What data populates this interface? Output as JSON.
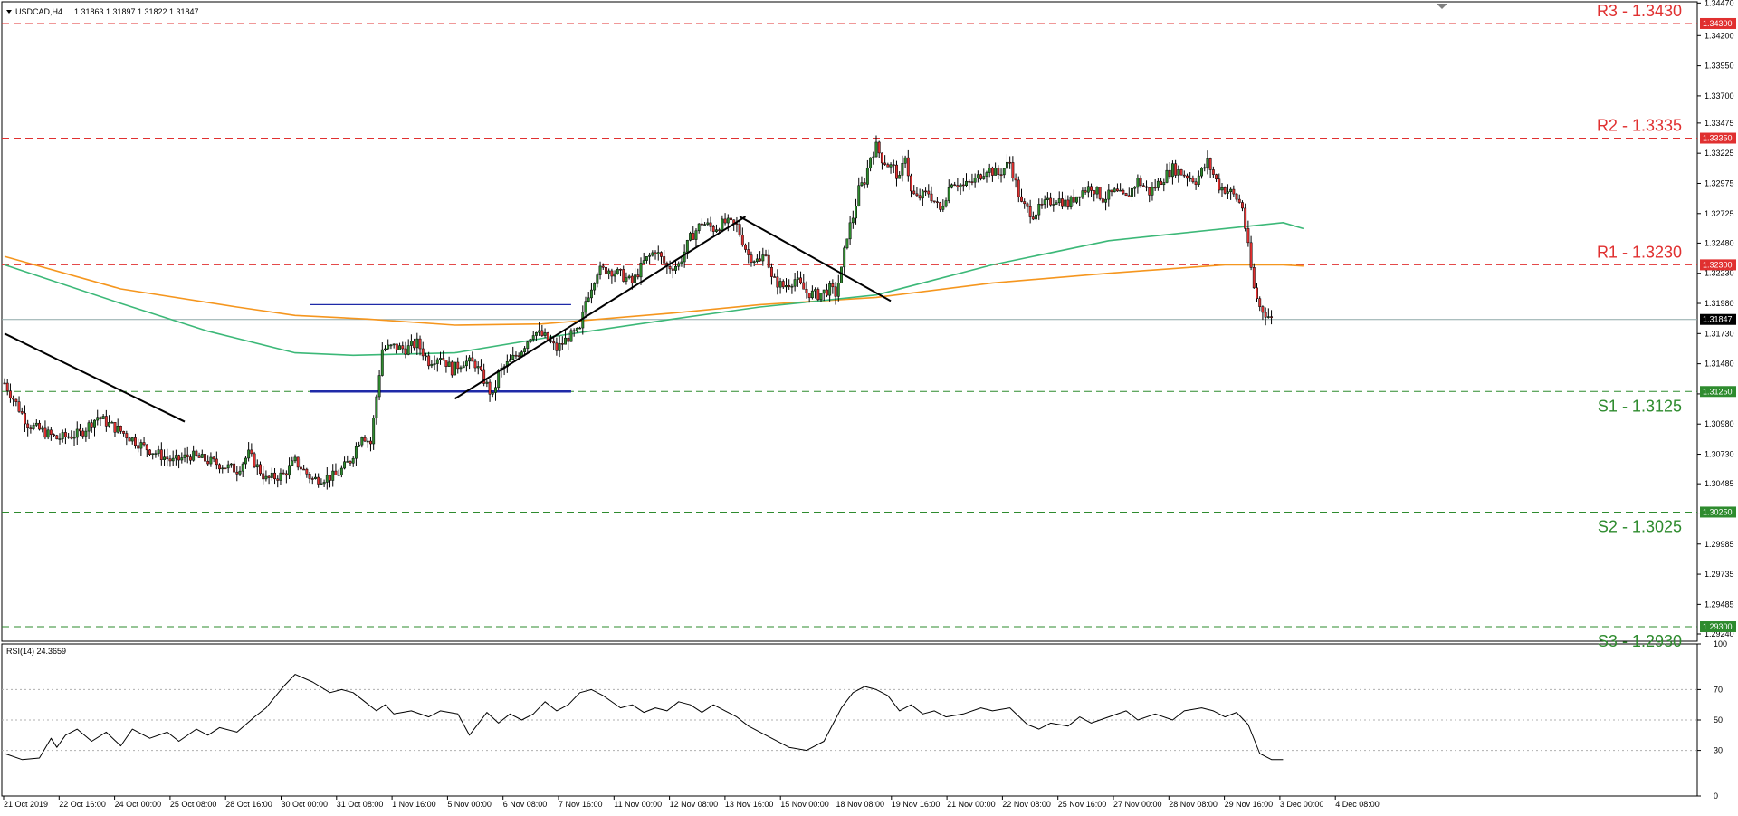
{
  "chart_data": [
    {
      "type": "candlestick",
      "header": {
        "symbol": "USDCAD,H4",
        "open": "1.31863",
        "high": "1.31897",
        "low": "1.31822",
        "close": "1.31847"
      },
      "last_price_label": "1.31847",
      "last_price": 1.31847,
      "ylim": [
        1.2918,
        1.3448
      ],
      "y_ticks": [
        "1.34470",
        "1.34200",
        "1.33950",
        "1.33700",
        "1.33475",
        "1.33225",
        "1.32975",
        "1.32725",
        "1.32480",
        "1.32230",
        "1.31980",
        "1.31730",
        "1.31480",
        "1.31230",
        "1.30980",
        "1.30730",
        "1.30485",
        "1.30235",
        "1.29985",
        "1.29735",
        "1.29485",
        "1.29240"
      ],
      "x_labels": [
        "21 Oct 2019",
        "22 Oct 16:00",
        "24 Oct 00:00",
        "25 Oct 08:00",
        "28 Oct 16:00",
        "30 Oct 00:00",
        "31 Oct 08:00",
        "1 Nov 16:00",
        "5 Nov 00:00",
        "6 Nov 08:00",
        "7 Nov 16:00",
        "11 Nov 00:00",
        "12 Nov 08:00",
        "13 Nov 16:00",
        "15 Nov 00:00",
        "18 Nov 08:00",
        "19 Nov 16:00",
        "21 Nov 00:00",
        "22 Nov 08:00",
        "25 Nov 16:00",
        "27 Nov 00:00",
        "28 Nov 08:00",
        "29 Nov 16:00",
        "3 Dec 00:00",
        "4 Dec 08:00"
      ],
      "levels": [
        {
          "name": "R3 - 1.3430",
          "label": "1.34300",
          "value": 1.343,
          "kind": "resistance"
        },
        {
          "name": "R2 - 1.3335",
          "label": "1.33350",
          "value": 1.3335,
          "kind": "resistance"
        },
        {
          "name": "R1 - 1.3230",
          "label": "1.32300",
          "value": 1.323,
          "kind": "resistance"
        },
        {
          "name": "S1 - 1.3125",
          "label": "1.31250",
          "value": 1.3125,
          "kind": "support"
        },
        {
          "name": "S2 - 1.3025",
          "label": "1.30250",
          "value": 1.3025,
          "kind": "support"
        },
        {
          "name": "S3 - 1.2930",
          "label": "1.29300",
          "value": 1.293,
          "kind": "support"
        }
      ],
      "close_path": [
        [
          0,
          1.3132
        ],
        [
          8,
          1.3098
        ],
        [
          18,
          1.3086
        ],
        [
          26,
          1.309
        ],
        [
          32,
          1.3104
        ],
        [
          40,
          1.3092
        ],
        [
          48,
          1.3079
        ],
        [
          58,
          1.3067
        ],
        [
          64,
          1.3072
        ],
        [
          72,
          1.3066
        ],
        [
          80,
          1.306
        ],
        [
          84,
          1.3073
        ],
        [
          90,
          1.3052
        ],
        [
          96,
          1.3056
        ],
        [
          100,
          1.3067
        ],
        [
          106,
          1.3052
        ],
        [
          114,
          1.3055
        ],
        [
          119,
          1.3068
        ],
        [
          123,
          1.309
        ],
        [
          126,
          1.3082
        ],
        [
          130,
          1.316
        ],
        [
          134,
          1.3162
        ],
        [
          138,
          1.316
        ],
        [
          142,
          1.3165
        ],
        [
          146,
          1.315
        ],
        [
          150,
          1.3155
        ],
        [
          154,
          1.3143
        ],
        [
          158,
          1.315
        ],
        [
          162,
          1.3148
        ],
        [
          166,
          1.313
        ],
        [
          168,
          1.312
        ],
        [
          170,
          1.314
        ],
        [
          174,
          1.315
        ],
        [
          178,
          1.316
        ],
        [
          182,
          1.3175
        ],
        [
          186,
          1.317
        ],
        [
          190,
          1.316
        ],
        [
          194,
          1.317
        ],
        [
          198,
          1.3175
        ],
        [
          200,
          1.32
        ],
        [
          204,
          1.3225
        ],
        [
          208,
          1.3226
        ],
        [
          212,
          1.3222
        ],
        [
          216,
          1.3215
        ],
        [
          220,
          1.3232
        ],
        [
          224,
          1.3242
        ],
        [
          228,
          1.3228
        ],
        [
          232,
          1.323
        ],
        [
          236,
          1.3252
        ],
        [
          240,
          1.3265
        ],
        [
          244,
          1.326
        ],
        [
          248,
          1.3265
        ],
        [
          252,
          1.3262
        ],
        [
          256,
          1.3238
        ],
        [
          260,
          1.3232
        ],
        [
          262,
          1.3242
        ],
        [
          264,
          1.3218
        ],
        [
          268,
          1.3212
        ],
        [
          272,
          1.3218
        ],
        [
          276,
          1.3207
        ],
        [
          280,
          1.3205
        ],
        [
          284,
          1.321
        ],
        [
          286,
          1.3206
        ],
        [
          288,
          1.3225
        ],
        [
          290,
          1.3255
        ],
        [
          292,
          1.327
        ],
        [
          294,
          1.3292
        ],
        [
          296,
          1.33
        ],
        [
          298,
          1.332
        ],
        [
          300,
          1.3328
        ],
        [
          302,
          1.3318
        ],
        [
          304,
          1.3313
        ],
        [
          306,
          1.331
        ],
        [
          308,
          1.33
        ],
        [
          310,
          1.3322
        ],
        [
          312,
          1.329
        ],
        [
          314,
          1.3285
        ],
        [
          318,
          1.329
        ],
        [
          322,
          1.3275
        ],
        [
          326,
          1.33
        ],
        [
          330,
          1.3295
        ],
        [
          334,
          1.33
        ],
        [
          338,
          1.331
        ],
        [
          342,
          1.3305
        ],
        [
          346,
          1.3315
        ],
        [
          350,
          1.328
        ],
        [
          354,
          1.3272
        ],
        [
          358,
          1.328
        ],
        [
          362,
          1.3285
        ],
        [
          366,
          1.328
        ],
        [
          370,
          1.329
        ],
        [
          374,
          1.3295
        ],
        [
          378,
          1.3285
        ],
        [
          382,
          1.329
        ],
        [
          386,
          1.3285
        ],
        [
          390,
          1.33
        ],
        [
          394,
          1.329
        ],
        [
          398,
          1.33
        ],
        [
          402,
          1.331
        ],
        [
          406,
          1.3305
        ],
        [
          410,
          1.33
        ],
        [
          414,
          1.3315
        ],
        [
          418,
          1.3295
        ],
        [
          422,
          1.329
        ],
        [
          424,
          1.3285
        ],
        [
          426,
          1.3278
        ],
        [
          430,
          1.321
        ],
        [
          432,
          1.3195
        ],
        [
          434,
          1.319
        ],
        [
          436,
          1.3185
        ]
      ],
      "trend_lines": [
        [
          [
            0,
            1.3173
          ],
          [
            62,
            1.31
          ]
        ],
        [
          [
            155,
            1.3119
          ],
          [
            255,
            1.327
          ]
        ],
        [
          [
            253,
            1.327
          ],
          [
            305,
            1.32
          ]
        ]
      ],
      "range_box": [
        [
          105,
          1.3197
        ],
        [
          195,
          1.3125
        ]
      ],
      "ma_orange": [
        [
          0,
          1.3237
        ],
        [
          40,
          1.321
        ],
        [
          80,
          1.3195
        ],
        [
          100,
          1.3188
        ],
        [
          125,
          1.3185
        ],
        [
          155,
          1.318
        ],
        [
          185,
          1.3181
        ],
        [
          230,
          1.319
        ],
        [
          260,
          1.3197
        ],
        [
          300,
          1.3203
        ],
        [
          340,
          1.3215
        ],
        [
          380,
          1.3223
        ],
        [
          420,
          1.323
        ],
        [
          440,
          1.323
        ],
        [
          447,
          1.3229
        ]
      ],
      "ma_green": [
        [
          0,
          1.323
        ],
        [
          40,
          1.3198
        ],
        [
          70,
          1.3175
        ],
        [
          100,
          1.3157
        ],
        [
          120,
          1.3155
        ],
        [
          155,
          1.3157
        ],
        [
          190,
          1.3171
        ],
        [
          230,
          1.3185
        ],
        [
          260,
          1.3195
        ],
        [
          300,
          1.3205
        ],
        [
          340,
          1.323
        ],
        [
          380,
          1.325
        ],
        [
          420,
          1.326
        ],
        [
          440,
          1.3265
        ],
        [
          447,
          1.326
        ]
      ]
    },
    {
      "type": "line",
      "title": "RSI(14) 24.3659",
      "ylim": [
        0,
        100
      ],
      "y_ticks": [
        "100",
        "70",
        "50",
        "30",
        "0"
      ],
      "x": [
        0,
        6,
        12,
        16,
        18,
        21,
        25,
        30,
        35,
        40,
        44,
        50,
        56,
        60,
        66,
        70,
        74,
        80,
        86,
        90,
        96,
        100,
        106,
        112,
        116,
        120,
        124,
        128,
        131,
        134,
        140,
        146,
        150,
        156,
        160,
        166,
        170,
        174,
        178,
        182,
        186,
        190,
        194,
        198,
        202,
        206,
        212,
        216,
        220,
        224,
        228,
        232,
        236,
        240,
        244,
        248,
        252,
        256,
        262,
        270,
        276,
        282,
        288,
        292,
        296,
        300,
        304,
        308,
        312,
        316,
        320,
        324,
        330,
        336,
        340,
        346,
        352,
        356,
        360,
        366,
        370,
        374,
        380,
        386,
        390,
        396,
        402,
        406,
        412,
        416,
        420,
        424,
        428,
        432,
        436,
        440
      ],
      "values": [
        28,
        24,
        25,
        38,
        32,
        40,
        44,
        36,
        42,
        33,
        44,
        38,
        42,
        36,
        44,
        40,
        45,
        42,
        52,
        58,
        72,
        80,
        75,
        68,
        70,
        68,
        62,
        56,
        60,
        54,
        56,
        52,
        56,
        54,
        40,
        55,
        48,
        54,
        50,
        54,
        62,
        56,
        60,
        68,
        70,
        66,
        58,
        60,
        55,
        58,
        56,
        62,
        60,
        55,
        60,
        56,
        52,
        46,
        40,
        32,
        30,
        36,
        58,
        68,
        72,
        70,
        66,
        56,
        60,
        54,
        56,
        52,
        54,
        58,
        56,
        58,
        47,
        44,
        48,
        46,
        52,
        48,
        52,
        56,
        50,
        54,
        50,
        56,
        58,
        56,
        52,
        55,
        47,
        28,
        24,
        24
      ]
    }
  ]
}
